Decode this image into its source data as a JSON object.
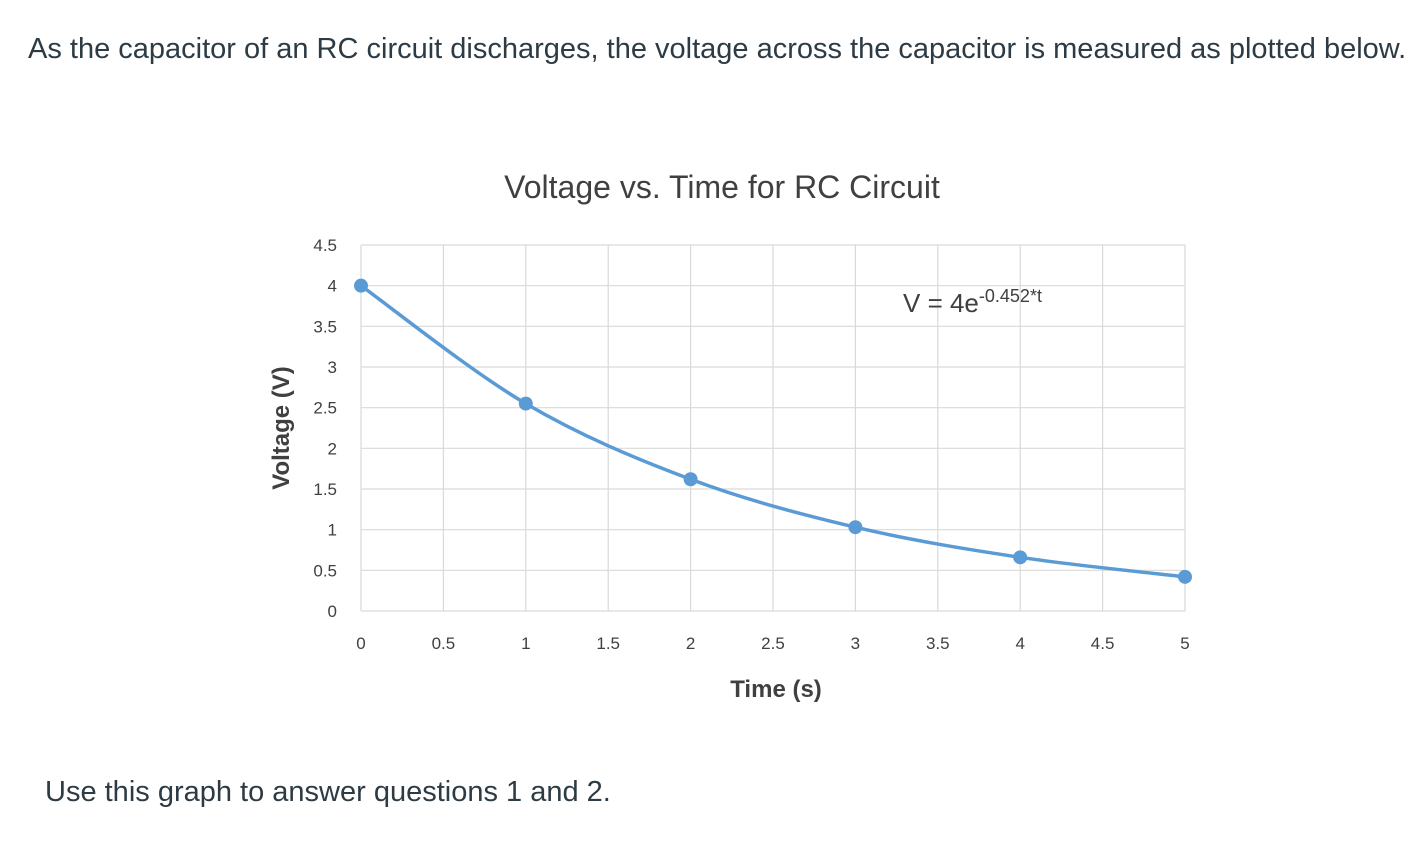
{
  "intro_text": "As the capacitor of an RC circuit discharges, the voltage across the capacitor is measured as plotted below.",
  "outro_text": "Use this graph to answer questions 1 and 2.",
  "chart_data": {
    "type": "scatter",
    "title": "Voltage vs. Time for RC Circuit",
    "xlabel": "Time (s)",
    "ylabel": "Voltage (V)",
    "xlim": [
      0,
      5
    ],
    "ylim": [
      0,
      4.5
    ],
    "x_ticks": [
      "0",
      "0.5",
      "1",
      "1.5",
      "2",
      "2.5",
      "3",
      "3.5",
      "4",
      "4.5",
      "5"
    ],
    "y_ticks": [
      "0",
      "0.5",
      "1",
      "1.5",
      "2",
      "2.5",
      "3",
      "3.5",
      "4",
      "4.5"
    ],
    "grid": true,
    "series": [
      {
        "x": [
          0,
          1,
          2,
          3,
          4,
          5
        ],
        "y": [
          4.0,
          2.55,
          1.62,
          1.03,
          0.66,
          0.42
        ],
        "color": "#5b9bd5",
        "connected": "smooth"
      }
    ],
    "annotation": {
      "base": "V = 4e",
      "exponent": "-0.452*t"
    }
  }
}
